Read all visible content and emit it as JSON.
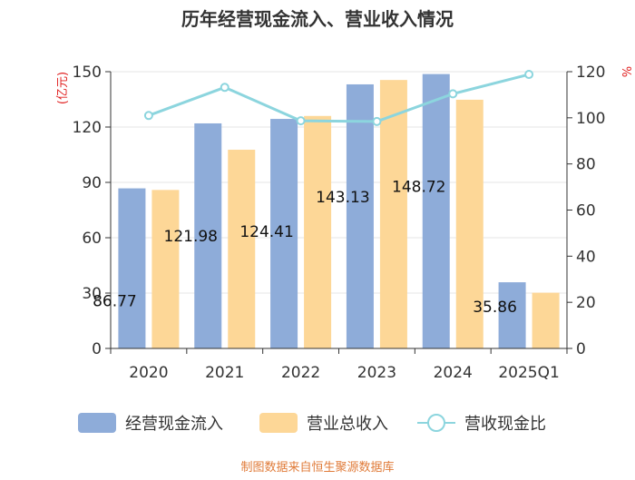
{
  "chart_data": {
    "type": "bar",
    "title": "历年经营现金流入、营业收入情况",
    "categories": [
      "2020",
      "2021",
      "2022",
      "2023",
      "2024",
      "2025Q1"
    ],
    "left_axis": {
      "label": "(亿元)",
      "min": 0,
      "max": 150,
      "ticks": [
        0,
        30,
        60,
        90,
        120,
        150
      ]
    },
    "right_axis": {
      "label": "%",
      "min": 0,
      "max": 120,
      "ticks": [
        0,
        20,
        40,
        60,
        80,
        100,
        120
      ]
    },
    "series": [
      {
        "name": "经营现金流入",
        "type": "bar",
        "axis": "left",
        "color": "#8eacd9",
        "values": [
          86.77,
          121.98,
          124.41,
          143.13,
          148.72,
          35.86
        ],
        "data_labels": [
          "86.77",
          "121.98",
          "124.41",
          "143.13",
          "148.72",
          "35.86"
        ]
      },
      {
        "name": "营业总收入",
        "type": "bar",
        "axis": "left",
        "color": "#fdd797",
        "values": [
          85.9,
          107.7,
          126.0,
          145.5,
          134.8,
          30.2
        ]
      },
      {
        "name": "营收现金比",
        "type": "line",
        "axis": "right",
        "color": "#8cd5de",
        "values": [
          101.0,
          113.2,
          98.7,
          98.4,
          110.4,
          118.8
        ]
      }
    ],
    "grid": true,
    "legend_position": "bottom",
    "source": "制图数据来自恒生聚源数据库"
  }
}
